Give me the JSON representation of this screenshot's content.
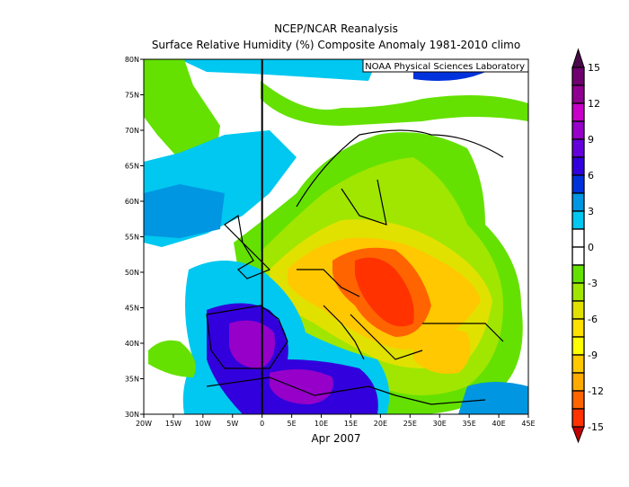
{
  "title": "NCEP/NCAR Reanalysis",
  "subtitle": "Surface Relative Humidity (%) Composite Anomaly 1981-2010 climo",
  "credit": "NOAA Physical Sciences Laboratory",
  "xlabel": "Apr 2007",
  "map": {
    "lon_range": [
      -20,
      45
    ],
    "lat_range": [
      30,
      80
    ],
    "lon_ticks": [
      "20W",
      "15W",
      "10W",
      "5W",
      "0",
      "5E",
      "10E",
      "15E",
      "20E",
      "25E",
      "30E",
      "35E",
      "40E",
      "45E"
    ],
    "lat_ticks": [
      "80N",
      "75N",
      "70N",
      "65N",
      "60N",
      "55N",
      "50N",
      "45N",
      "40N",
      "35N",
      "30N"
    ],
    "variable": "surface relative humidity anomaly (%)"
  },
  "colorbar": {
    "labels": [
      "15",
      "12",
      "9",
      "6",
      "3",
      "0",
      "-3",
      "-6",
      "-9",
      "-12",
      "-15"
    ],
    "levels": [
      -15,
      -13.5,
      -12,
      -10.5,
      -9,
      -7.5,
      -6,
      -4.5,
      -3,
      -1.5,
      0,
      1.5,
      3,
      4.5,
      6,
      7.5,
      9,
      10.5,
      12,
      13.5,
      15
    ],
    "colors_top_to_bottom": [
      "#700070",
      "#900090",
      "#c800c8",
      "#9600c8",
      "#6400dc",
      "#3200dc",
      "#0032dc",
      "#0096e1",
      "#00c8f0",
      "#ffffff",
      "#ffffff",
      "#64e100",
      "#a0e600",
      "#e1e100",
      "#ffe100",
      "#ffff00",
      "#ffc800",
      "#ffaa00",
      "#ff6400",
      "#ff3200"
    ],
    "over_color": "#4a0a4a",
    "under_color": "#c00000"
  }
}
